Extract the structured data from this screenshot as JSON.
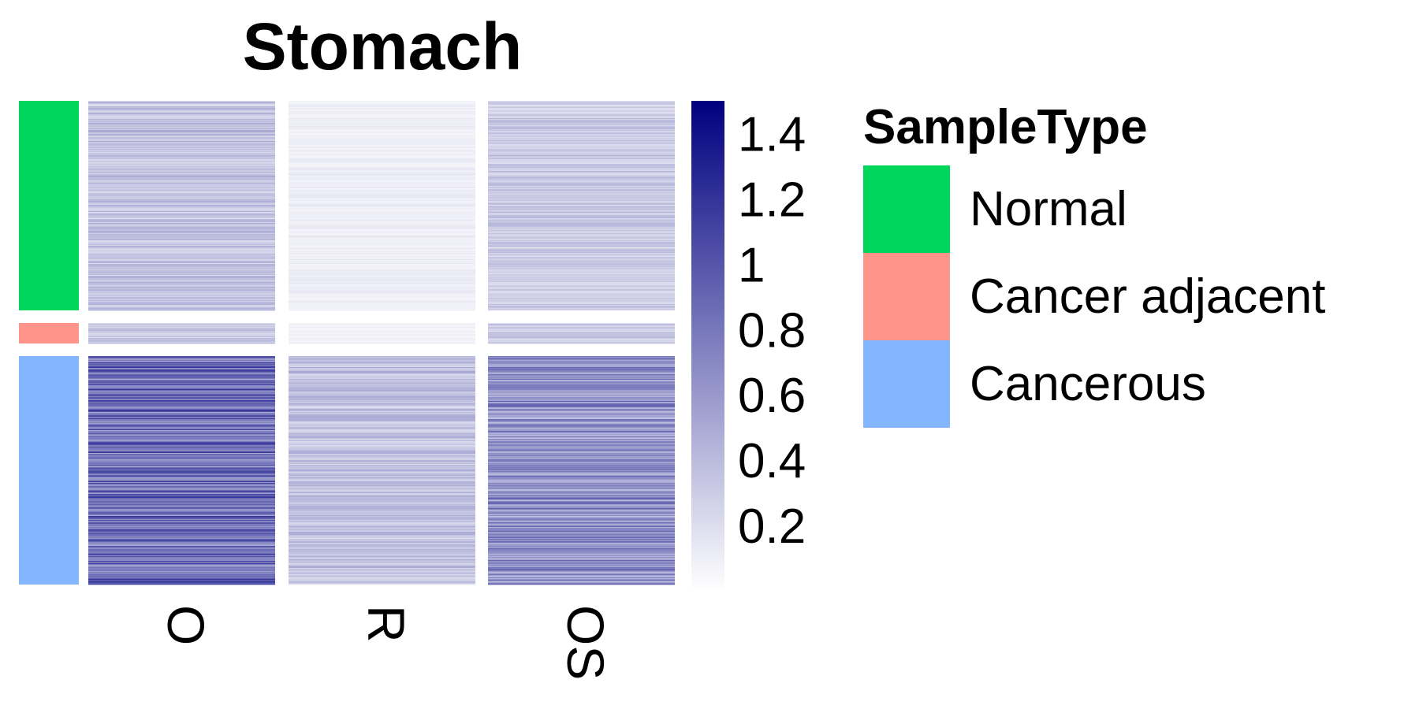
{
  "chart_data": {
    "type": "heatmap",
    "title": "Stomach",
    "columns": [
      "O",
      "R",
      "OS"
    ],
    "row_groups": [
      {
        "name": "Normal",
        "color": "#00D65C",
        "rows": 230,
        "mean_values": [
          0.35,
          0.1,
          0.3
        ]
      },
      {
        "name": "Cancer adjacent",
        "color": "#FF948A",
        "rows": 22,
        "mean_values": [
          0.33,
          0.08,
          0.3
        ]
      },
      {
        "name": "Cancerous",
        "color": "#83B6FF",
        "rows": 250,
        "mean_values": [
          0.85,
          0.35,
          0.65
        ]
      }
    ],
    "colorscale": {
      "min": 0,
      "max": 1.5,
      "low_color": "#FFFFFF",
      "high_color": "#000080",
      "ticks": [
        "1.4",
        "1.2",
        "1",
        "0.8",
        "0.6",
        "0.4",
        "0.2"
      ],
      "tick_values": [
        1.4,
        1.2,
        1.0,
        0.8,
        0.6,
        0.4,
        0.2
      ]
    },
    "legend": {
      "title": "SampleType",
      "entries": [
        "Normal",
        "Cancer adjacent",
        "Cancerous"
      ],
      "position": "right"
    }
  }
}
